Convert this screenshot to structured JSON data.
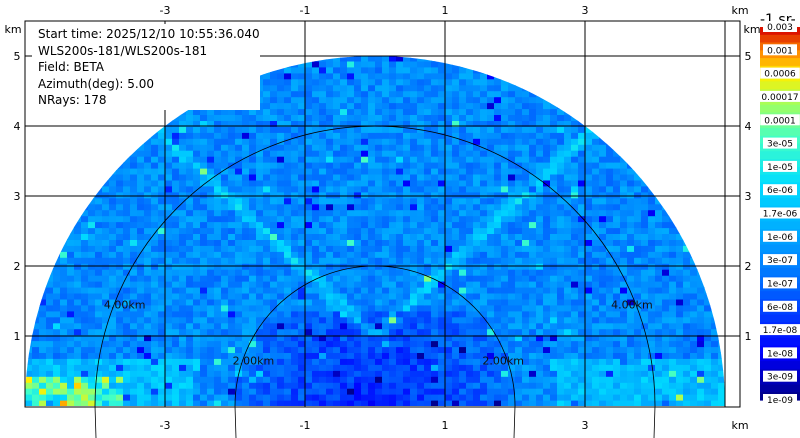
{
  "info": {
    "start_time": "Start time: 2025/12/10 10:55:36.040",
    "instrument": "WLS200s-181/WLS200s-181",
    "field": "Field: BETA",
    "azimuth": "Azimuth(deg): 5.00",
    "nrays": "NRays: 178"
  },
  "colorbar": {
    "title": "-1 sr-",
    "top_label": "0.003",
    "labels": [
      "0.001",
      "0.0006",
      "0.00017",
      "0.0001",
      "3e-05",
      "1e-05",
      "6e-06",
      "1.7e-06",
      "1e-06",
      "3e-07",
      "1e-07",
      "6e-08",
      "1.7e-08",
      "1e-08",
      "3e-09",
      "1e-09"
    ]
  },
  "chart_data": {
    "type": "heatmap",
    "x_unit": "km",
    "y_unit": "km",
    "x_ticks": [
      -3,
      -1,
      1,
      3
    ],
    "y_ticks": [
      1,
      2,
      3,
      4,
      5
    ],
    "xlim": [
      -5,
      5.1
    ],
    "ylim": [
      0,
      6
    ],
    "range_rings_km": [
      2,
      4
    ],
    "range_ring_labels": [
      "2.00km",
      "4.00km"
    ],
    "max_range_km": 5,
    "field": "BETA",
    "colorscale": [
      "#00007f",
      "#0000ff",
      "#0066ff",
      "#00ccff",
      "#33ffcc",
      "#99ff66",
      "#ffff00",
      "#ff9900",
      "#ff3300",
      "#b20000"
    ]
  }
}
